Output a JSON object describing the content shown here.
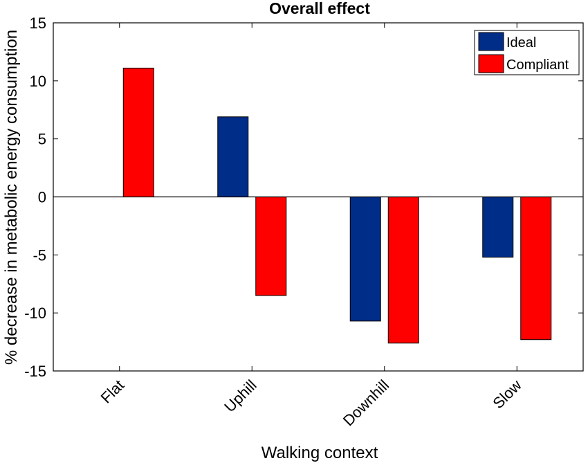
{
  "chart_data": {
    "type": "bar",
    "title": "Overall effect",
    "xlabel": "Walking context",
    "ylabel": "% decrease in metabolic energy consumption",
    "categories": [
      "Flat",
      "Uphill",
      "Downhill",
      "Slow"
    ],
    "series": [
      {
        "name": "Ideal",
        "color": "#002d87",
        "values": [
          0,
          6.9,
          -10.7,
          -5.2
        ]
      },
      {
        "name": "Compliant",
        "color": "#ff0000",
        "values": [
          11.1,
          -8.5,
          -12.6,
          -12.3
        ]
      }
    ],
    "ylim": [
      -15,
      15
    ],
    "yticks": [
      -15,
      -10,
      -5,
      0,
      5,
      10,
      15
    ],
    "ytick_labels": [
      "-15",
      "-10",
      "-5",
      "0",
      "5",
      "10",
      "15"
    ],
    "grid": false,
    "legend_position": "top-right"
  }
}
